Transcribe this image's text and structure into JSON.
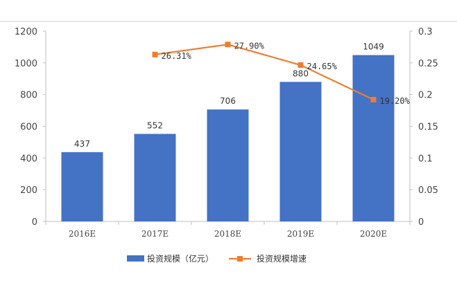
{
  "chart_data": {
    "type": "bar",
    "categories": [
      "2016E",
      "2017E",
      "2018E",
      "2019E",
      "2020E"
    ],
    "series": [
      {
        "name": "投资规模（亿元）",
        "type": "bar",
        "axis": "left",
        "values": [
          437,
          552,
          706,
          880,
          1049
        ],
        "labels": [
          "437",
          "552",
          "706",
          "880",
          "1049"
        ]
      },
      {
        "name": "投资规模增速",
        "type": "line",
        "axis": "right",
        "values": [
          null,
          0.2631,
          0.279,
          0.2465,
          0.192
        ],
        "labels": [
          "",
          "26.31%",
          "27.90%",
          "24.65%",
          "19.20%"
        ]
      }
    ],
    "y_left": {
      "ylim": [
        0,
        1200
      ],
      "ticks": [
        "0",
        "200",
        "400",
        "600",
        "800",
        "1000",
        "1200"
      ]
    },
    "y_right": {
      "ylim": [
        0,
        0.3
      ],
      "ticks": [
        "0",
        "0.05",
        "0.1",
        "0.15",
        "0.2",
        "0.25",
        "0.3"
      ]
    },
    "grid": false,
    "legend": "bottom-center",
    "colors": {
      "bar": "#4472C4",
      "line": "#ED7D31",
      "axis": "#BFBFBF"
    }
  }
}
